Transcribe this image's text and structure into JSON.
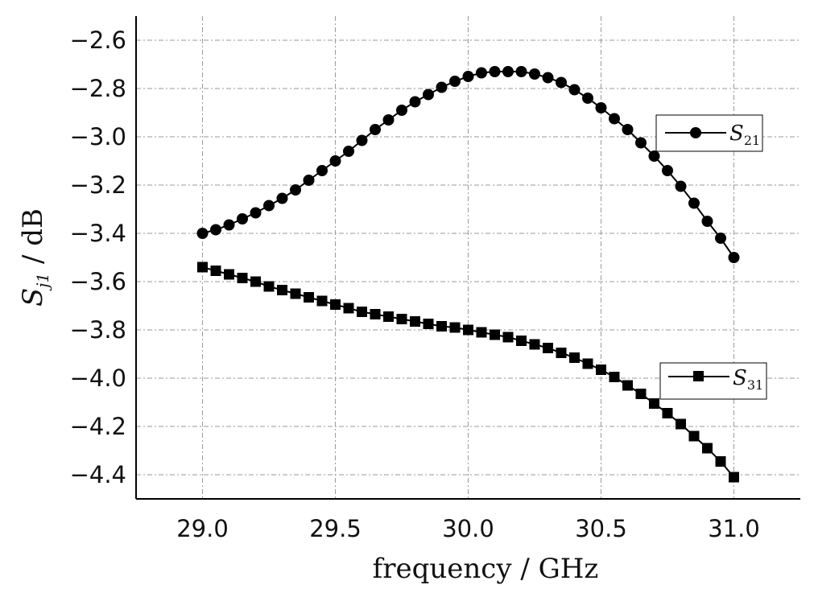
{
  "chart_data": {
    "type": "line",
    "xlabel": "frequency / GHz",
    "ylabel": "S_j1 / dB",
    "ylabel_parts": {
      "symbol": "S",
      "subscript": "j1",
      "rest": " / dB"
    },
    "xlim": [
      28.75,
      31.25
    ],
    "ylim": [
      -4.5,
      -2.5
    ],
    "x_ticks": [
      29.0,
      29.5,
      30.0,
      30.5,
      31.0
    ],
    "x_tick_labels": [
      "29.0",
      "29.5",
      "30.0",
      "30.5",
      "31.0"
    ],
    "y_ticks": [
      -2.6,
      -2.8,
      -3.0,
      -3.2,
      -3.4,
      -3.6,
      -3.8,
      -4.0,
      -4.2,
      -4.4
    ],
    "y_tick_labels": [
      "−2.6",
      "−2.8",
      "−3.0",
      "−3.2",
      "−3.4",
      "−3.6",
      "−3.8",
      "−4.0",
      "−4.2",
      "−4.4"
    ],
    "grid": true,
    "x": [
      29.0,
      29.05,
      29.1,
      29.15,
      29.2,
      29.25,
      29.3,
      29.35,
      29.4,
      29.45,
      29.5,
      29.55,
      29.6,
      29.65,
      29.7,
      29.75,
      29.8,
      29.85,
      29.9,
      29.95,
      30.0,
      30.05,
      30.1,
      30.15,
      30.2,
      30.25,
      30.3,
      30.35,
      30.4,
      30.45,
      30.5,
      30.55,
      30.6,
      30.65,
      30.7,
      30.75,
      30.8,
      30.85,
      30.9,
      30.95,
      31.0
    ],
    "series": [
      {
        "name": "S21",
        "label_symbol": "S",
        "label_sub": "21",
        "marker": "circle",
        "legend_position": "upper-right",
        "values": [
          -3.4,
          -3.385,
          -3.365,
          -3.34,
          -3.315,
          -3.285,
          -3.255,
          -3.22,
          -3.18,
          -3.14,
          -3.1,
          -3.06,
          -3.015,
          -2.97,
          -2.93,
          -2.89,
          -2.855,
          -2.825,
          -2.795,
          -2.77,
          -2.75,
          -2.735,
          -2.73,
          -2.73,
          -2.73,
          -2.74,
          -2.755,
          -2.775,
          -2.805,
          -2.84,
          -2.88,
          -2.925,
          -2.97,
          -3.025,
          -3.08,
          -3.14,
          -3.205,
          -3.275,
          -3.35,
          -3.42,
          -3.5
        ]
      },
      {
        "name": "S31",
        "label_symbol": "S",
        "label_sub": "31",
        "marker": "square",
        "legend_position": "lower-right",
        "values": [
          -3.54,
          -3.555,
          -3.57,
          -3.585,
          -3.6,
          -3.62,
          -3.635,
          -3.65,
          -3.665,
          -3.68,
          -3.695,
          -3.71,
          -3.725,
          -3.735,
          -3.745,
          -3.755,
          -3.765,
          -3.775,
          -3.785,
          -3.79,
          -3.8,
          -3.81,
          -3.82,
          -3.83,
          -3.845,
          -3.86,
          -3.875,
          -3.895,
          -3.915,
          -3.94,
          -3.965,
          -3.995,
          -4.03,
          -4.065,
          -4.105,
          -4.145,
          -4.19,
          -4.24,
          -4.29,
          -4.345,
          -4.41
        ]
      }
    ]
  }
}
